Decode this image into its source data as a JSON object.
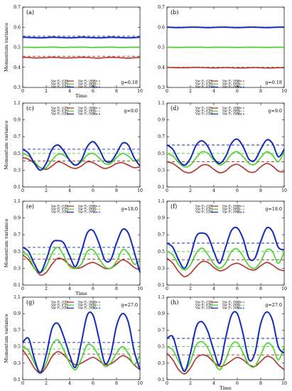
{
  "chart_data": [
    {
      "tag": "(a)",
      "g_label": "g=0.18",
      "ylabel": "Momentum variance",
      "xlabel": "Time",
      "ylim": [
        0.3,
        0.7
      ],
      "yticks": [
        0.3,
        0.4,
        0.5,
        0.6,
        0.7
      ],
      "xticks": [
        0,
        2,
        4,
        6,
        8,
        10
      ],
      "series": [
        {
          "color": "#a0301e",
          "y": [
            0.45,
            0.449,
            0.447,
            0.447,
            0.448,
            0.45,
            0.449,
            0.447,
            0.447,
            0.448,
            0.45,
            0.449,
            0.447,
            0.446,
            0.448,
            0.45,
            0.449,
            0.447,
            0.446,
            0.448,
            0.45
          ]
        },
        {
          "color": "#44cc22",
          "y": [
            0.5,
            0.5,
            0.499,
            0.5,
            0.5,
            0.501,
            0.5,
            0.499,
            0.5,
            0.5,
            0.501,
            0.5,
            0.499,
            0.5,
            0.5,
            0.501,
            0.5,
            0.499,
            0.5,
            0.5,
            0.5
          ]
        },
        {
          "color": "#1428b4",
          "y": [
            0.55,
            0.549,
            0.548,
            0.547,
            0.548,
            0.55,
            0.549,
            0.548,
            0.547,
            0.548,
            0.55,
            0.549,
            0.548,
            0.547,
            0.548,
            0.55,
            0.549,
            0.548,
            0.547,
            0.548,
            0.55
          ]
        }
      ],
      "mb": [
        0.455,
        0.5,
        0.555
      ]
    },
    {
      "tag": "(b)",
      "g_label": "g=0.18",
      "ylabel": "",
      "xlabel": "",
      "ylim": [
        0.3,
        0.7
      ],
      "yticks": [
        0.3,
        0.4,
        0.5,
        0.6,
        0.7
      ],
      "xticks": [
        0,
        2,
        4,
        6,
        8,
        10
      ],
      "series": [
        {
          "color": "#a0301e",
          "y": [
            0.4,
            0.399,
            0.398,
            0.398,
            0.399,
            0.4,
            0.399,
            0.398,
            0.397,
            0.398,
            0.399,
            0.398,
            0.397,
            0.397,
            0.398,
            0.399,
            0.398,
            0.397,
            0.397,
            0.398,
            0.398
          ]
        },
        {
          "color": "#44cc22",
          "y": [
            0.5,
            0.5,
            0.499,
            0.5,
            0.5,
            0.5,
            0.5,
            0.499,
            0.5,
            0.5,
            0.5,
            0.5,
            0.499,
            0.5,
            0.5,
            0.5,
            0.5,
            0.499,
            0.5,
            0.5,
            0.5
          ]
        },
        {
          "color": "#1428b4",
          "y": [
            0.6,
            0.599,
            0.598,
            0.599,
            0.6,
            0.6,
            0.599,
            0.598,
            0.599,
            0.6,
            0.6,
            0.599,
            0.598,
            0.599,
            0.6,
            0.6,
            0.599,
            0.598,
            0.599,
            0.6,
            0.6
          ]
        }
      ],
      "mb": [
        0.4,
        0.5,
        0.6
      ]
    },
    {
      "tag": "(c)",
      "g_label": "g=9.0",
      "ylabel": "Momentum variance",
      "xlabel": "",
      "ylim": [
        0.1,
        1.1
      ],
      "yticks": [
        0.1,
        0.3,
        0.5,
        0.7,
        0.9,
        1.1
      ],
      "xticks": [
        0,
        2,
        4,
        6,
        8,
        10
      ],
      "series": [
        {
          "color": "#a0301e",
          "y": [
            0.45,
            0.43,
            0.38,
            0.33,
            0.31,
            0.35,
            0.4,
            0.38,
            0.34,
            0.32,
            0.35,
            0.4,
            0.39,
            0.35,
            0.32,
            0.34,
            0.38,
            0.39,
            0.36,
            0.33,
            0.34
          ]
        },
        {
          "color": "#44cc22",
          "y": [
            0.5,
            0.47,
            0.4,
            0.33,
            0.33,
            0.42,
            0.49,
            0.48,
            0.42,
            0.36,
            0.4,
            0.48,
            0.5,
            0.45,
            0.38,
            0.38,
            0.45,
            0.5,
            0.47,
            0.41,
            0.44
          ]
        },
        {
          "color": "#1428b4",
          "y": [
            0.55,
            0.5,
            0.38,
            0.3,
            0.38,
            0.55,
            0.6,
            0.53,
            0.42,
            0.36,
            0.42,
            0.58,
            0.64,
            0.56,
            0.42,
            0.4,
            0.5,
            0.62,
            0.6,
            0.45,
            0.35
          ]
        }
      ],
      "mb": [
        0.41,
        0.5,
        0.55
      ]
    },
    {
      "tag": "(d)",
      "g_label": "g=9.0",
      "ylabel": "",
      "xlabel": "",
      "ylim": [
        0.1,
        1.1
      ],
      "yticks": [
        0.1,
        0.3,
        0.5,
        0.7,
        0.9,
        1.1
      ],
      "xticks": [
        0,
        2,
        4,
        6,
        8,
        10
      ],
      "series": [
        {
          "color": "#a0301e",
          "y": [
            0.4,
            0.38,
            0.33,
            0.28,
            0.27,
            0.31,
            0.36,
            0.36,
            0.31,
            0.27,
            0.29,
            0.35,
            0.37,
            0.33,
            0.28,
            0.28,
            0.34,
            0.38,
            0.35,
            0.29,
            0.28
          ]
        },
        {
          "color": "#44cc22",
          "y": [
            0.5,
            0.47,
            0.39,
            0.34,
            0.36,
            0.45,
            0.52,
            0.5,
            0.42,
            0.36,
            0.4,
            0.49,
            0.52,
            0.46,
            0.38,
            0.37,
            0.45,
            0.52,
            0.48,
            0.4,
            0.52
          ]
        },
        {
          "color": "#1428b4",
          "y": [
            0.6,
            0.55,
            0.42,
            0.36,
            0.44,
            0.6,
            0.65,
            0.58,
            0.44,
            0.38,
            0.46,
            0.62,
            0.67,
            0.58,
            0.43,
            0.42,
            0.55,
            0.66,
            0.62,
            0.46,
            0.55
          ]
        }
      ],
      "mb": [
        0.4,
        0.5,
        0.6
      ]
    },
    {
      "tag": "(e)",
      "g_label": "g=18.0",
      "ylabel": "Momentum variance",
      "xlabel": "Time",
      "ylim": [
        0.1,
        1.1
      ],
      "yticks": [
        0.1,
        0.3,
        0.5,
        0.7,
        0.9,
        1.1
      ],
      "xticks": [
        0,
        2,
        4,
        6,
        8,
        10
      ],
      "series": [
        {
          "color": "#a0301e",
          "y": [
            0.46,
            0.4,
            0.3,
            0.22,
            0.25,
            0.35,
            0.42,
            0.4,
            0.34,
            0.3,
            0.31,
            0.35,
            0.37,
            0.34,
            0.3,
            0.3,
            0.35,
            0.4,
            0.37,
            0.31,
            0.28
          ]
        },
        {
          "color": "#44cc22",
          "y": [
            0.5,
            0.44,
            0.3,
            0.25,
            0.32,
            0.48,
            0.55,
            0.45,
            0.32,
            0.3,
            0.35,
            0.5,
            0.52,
            0.42,
            0.32,
            0.3,
            0.38,
            0.52,
            0.48,
            0.35,
            0.4
          ]
        },
        {
          "color": "#1428b4",
          "y": [
            0.55,
            0.5,
            0.35,
            0.25,
            0.4,
            0.6,
            0.63,
            0.6,
            0.45,
            0.32,
            0.5,
            0.72,
            0.75,
            0.6,
            0.4,
            0.4,
            0.6,
            0.76,
            0.72,
            0.5,
            0.25
          ]
        }
      ],
      "mb": [
        0.41,
        0.47,
        0.55
      ]
    },
    {
      "tag": "(f)",
      "g_label": "g=18.0",
      "ylabel": "",
      "xlabel": "",
      "ylim": [
        0.1,
        1.1
      ],
      "yticks": [
        0.1,
        0.3,
        0.5,
        0.7,
        0.9,
        1.1
      ],
      "xticks": [
        0,
        2,
        4,
        6,
        8,
        10
      ],
      "series": [
        {
          "color": "#a0301e",
          "y": [
            0.42,
            0.36,
            0.26,
            0.2,
            0.24,
            0.32,
            0.38,
            0.37,
            0.31,
            0.27,
            0.29,
            0.34,
            0.36,
            0.33,
            0.29,
            0.28,
            0.33,
            0.37,
            0.34,
            0.29,
            0.27
          ]
        },
        {
          "color": "#44cc22",
          "y": [
            0.5,
            0.46,
            0.34,
            0.28,
            0.34,
            0.48,
            0.54,
            0.46,
            0.35,
            0.3,
            0.36,
            0.5,
            0.53,
            0.44,
            0.33,
            0.3,
            0.38,
            0.52,
            0.5,
            0.36,
            0.5
          ]
        },
        {
          "color": "#1428b4",
          "y": [
            0.6,
            0.55,
            0.4,
            0.3,
            0.45,
            0.68,
            0.72,
            0.68,
            0.5,
            0.36,
            0.55,
            0.75,
            0.78,
            0.65,
            0.42,
            0.42,
            0.62,
            0.78,
            0.74,
            0.55,
            0.52
          ]
        }
      ],
      "mb": [
        0.4,
        0.5,
        0.6
      ]
    },
    {
      "tag": "(g)",
      "g_label": "g=27.0",
      "ylabel": "Momentum variance",
      "xlabel": "",
      "ylim": [
        0.1,
        1.1
      ],
      "yticks": [
        0.1,
        0.3,
        0.5,
        0.7,
        0.9,
        1.1
      ],
      "xticks": [
        0,
        2,
        4,
        6,
        8,
        10
      ],
      "series": [
        {
          "color": "#a0301e",
          "y": [
            0.46,
            0.36,
            0.24,
            0.18,
            0.25,
            0.38,
            0.44,
            0.4,
            0.33,
            0.28,
            0.3,
            0.34,
            0.37,
            0.33,
            0.28,
            0.29,
            0.34,
            0.39,
            0.36,
            0.28,
            0.22
          ]
        },
        {
          "color": "#44cc22",
          "y": [
            0.5,
            0.45,
            0.3,
            0.2,
            0.3,
            0.52,
            0.58,
            0.46,
            0.3,
            0.22,
            0.35,
            0.52,
            0.5,
            0.38,
            0.26,
            0.3,
            0.42,
            0.5,
            0.42,
            0.28,
            0.4
          ]
        },
        {
          "color": "#1428b4",
          "y": [
            0.55,
            0.6,
            0.35,
            0.18,
            0.4,
            0.72,
            0.78,
            0.62,
            0.4,
            0.25,
            0.55,
            0.88,
            0.88,
            0.6,
            0.3,
            0.4,
            0.75,
            0.9,
            0.8,
            0.45,
            0.22
          ]
        }
      ],
      "mb": [
        0.41,
        0.47,
        0.55
      ]
    },
    {
      "tag": "(h)",
      "g_label": "g=27.0",
      "ylabel": "",
      "xlabel": "Time",
      "ylim": [
        0.1,
        1.1
      ],
      "yticks": [
        0.1,
        0.3,
        0.5,
        0.7,
        0.9,
        1.1
      ],
      "xticks": [
        0,
        2,
        4,
        6,
        8,
        10
      ],
      "series": [
        {
          "color": "#a0301e",
          "y": [
            0.42,
            0.34,
            0.22,
            0.17,
            0.24,
            0.36,
            0.4,
            0.38,
            0.31,
            0.26,
            0.28,
            0.33,
            0.37,
            0.34,
            0.28,
            0.26,
            0.32,
            0.38,
            0.36,
            0.28,
            0.22
          ]
        },
        {
          "color": "#44cc22",
          "y": [
            0.5,
            0.46,
            0.32,
            0.22,
            0.32,
            0.52,
            0.56,
            0.48,
            0.32,
            0.22,
            0.34,
            0.52,
            0.55,
            0.42,
            0.28,
            0.26,
            0.4,
            0.54,
            0.5,
            0.34,
            0.5
          ]
        },
        {
          "color": "#1428b4",
          "y": [
            0.6,
            0.62,
            0.38,
            0.2,
            0.42,
            0.74,
            0.8,
            0.68,
            0.45,
            0.28,
            0.6,
            0.88,
            0.9,
            0.65,
            0.34,
            0.42,
            0.78,
            0.92,
            0.82,
            0.5,
            0.42
          ]
        }
      ],
      "mb": [
        0.4,
        0.5,
        0.6
      ]
    }
  ],
  "legend": {
    "gp": [
      "Var Pₓ (GP)",
      "Var Pᵧ (GP)",
      "Var Pₓ (GP)"
    ],
    "mb": [
      "Var Pₓ (MB)",
      "Var Pᵧ (MB)",
      "Var Pₓ (MB)"
    ]
  }
}
